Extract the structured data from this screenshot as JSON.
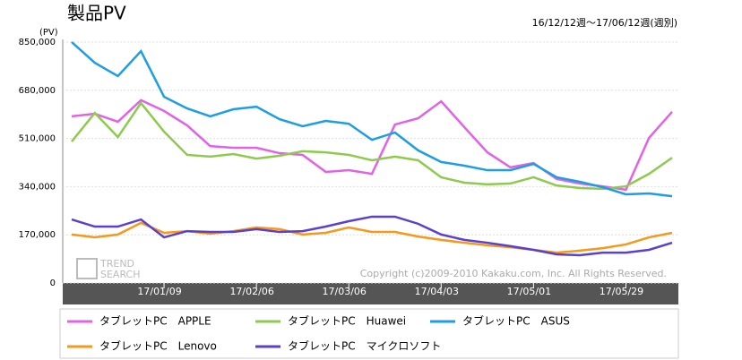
{
  "chart_data": {
    "type": "line",
    "title": "製品PV",
    "subtitle": "16/12/12週～17/06/12週(週別)",
    "y_label": "(PV)",
    "copyright": "Copyright (c)2009-2010 Kakaku.com, Inc. All Rights Reserved.",
    "watermark": [
      "TREND",
      "SEARCH"
    ],
    "categories": [
      null,
      null,
      null,
      null,
      "17/01/09",
      null,
      null,
      null,
      "17/02/06",
      null,
      null,
      null,
      "17/03/06",
      null,
      null,
      null,
      "17/04/03",
      null,
      null,
      null,
      "17/05/01",
      null,
      null,
      null,
      "17/05/29",
      null,
      null
    ],
    "ylim": [
      0,
      850000
    ],
    "yticks": [
      0,
      {
        "value": 170000,
        "label": "170,000"
      },
      {
        "value": 340000,
        "label": "340,000"
      },
      {
        "value": 510000,
        "label": "510,000"
      },
      {
        "value": 680000,
        "label": "680,000"
      },
      {
        "value": 850000,
        "label": "850,000"
      }
    ],
    "grid": true,
    "series": [
      {
        "name": "タブレットPC　APPLE",
        "color": "#e262e6",
        "values": [
          588000,
          597000,
          569000,
          645000,
          607000,
          556000,
          483000,
          477000,
          477000,
          458000,
          452000,
          392000,
          398000,
          385000,
          559000,
          581000,
          641000,
          550000,
          461000,
          408000,
          423000,
          367000,
          351000,
          341000,
          329000,
          512000,
          604000
        ]
      },
      {
        "name": "タブレットPC　Huawei",
        "color": "#8dca4e",
        "values": [
          499000,
          600000,
          515000,
          635000,
          534000,
          452000,
          446000,
          455000,
          439000,
          449000,
          465000,
          461000,
          452000,
          433000,
          446000,
          433000,
          373000,
          354000,
          348000,
          351000,
          373000,
          344000,
          335000,
          332000,
          341000,
          385000,
          442000
        ]
      },
      {
        "name": "タブレットPC　ASUS",
        "color": "#1d9de2",
        "values": [
          850000,
          777000,
          730000,
          818000,
          657000,
          616000,
          588000,
          613000,
          622000,
          578000,
          553000,
          572000,
          562000,
          505000,
          531000,
          468000,
          427000,
          414000,
          398000,
          398000,
          420000,
          373000,
          357000,
          338000,
          313000,
          316000,
          306000
        ]
      },
      {
        "name": "タブレットPC　Lenovo",
        "color": "#f5981c",
        "values": [
          171000,
          161000,
          171000,
          212000,
          177000,
          183000,
          174000,
          183000,
          196000,
          190000,
          171000,
          177000,
          196000,
          180000,
          180000,
          164000,
          152000,
          142000,
          133000,
          126000,
          117000,
          107000,
          114000,
          123000,
          136000,
          161000,
          177000
        ]
      },
      {
        "name": "タブレットPC　マイクロソフト",
        "color": "#5a40cf",
        "values": [
          224000,
          199000,
          199000,
          224000,
          161000,
          183000,
          180000,
          180000,
          190000,
          180000,
          183000,
          199000,
          218000,
          234000,
          234000,
          209000,
          171000,
          152000,
          142000,
          130000,
          117000,
          101000,
          98000,
          107000,
          107000,
          117000,
          142000
        ]
      }
    ]
  }
}
